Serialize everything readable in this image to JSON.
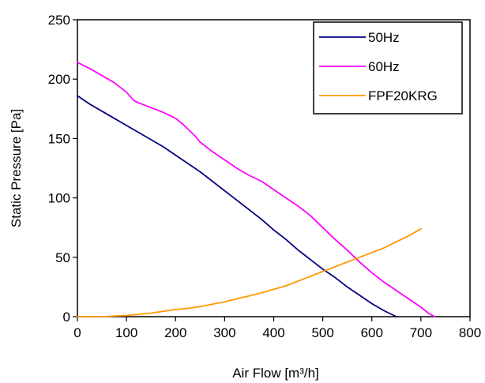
{
  "chart_data": {
    "type": "line",
    "title": "",
    "xlabel": "Air Flow  [m³/h]",
    "ylabel": "Static Pressure [Pa]",
    "xlim": [
      0,
      800
    ],
    "ylim": [
      0,
      250
    ],
    "x_ticks": [
      0,
      100,
      200,
      300,
      400,
      500,
      600,
      700,
      800
    ],
    "y_ticks": [
      0,
      50,
      100,
      150,
      200,
      250
    ],
    "grid": false,
    "legend_position": "top-right",
    "series": [
      {
        "name": "50Hz",
        "color": "#000080",
        "points": [
          [
            0,
            186
          ],
          [
            25,
            179
          ],
          [
            50,
            173
          ],
          [
            75,
            167
          ],
          [
            100,
            161
          ],
          [
            125,
            155
          ],
          [
            150,
            149
          ],
          [
            175,
            143
          ],
          [
            200,
            136
          ],
          [
            225,
            129
          ],
          [
            250,
            122
          ],
          [
            275,
            114
          ],
          [
            300,
            106
          ],
          [
            325,
            98
          ],
          [
            350,
            90
          ],
          [
            375,
            82
          ],
          [
            400,
            73
          ],
          [
            425,
            65
          ],
          [
            450,
            56
          ],
          [
            475,
            48
          ],
          [
            500,
            40
          ],
          [
            525,
            33
          ],
          [
            550,
            25
          ],
          [
            575,
            18
          ],
          [
            600,
            11
          ],
          [
            625,
            5
          ],
          [
            650,
            0
          ]
        ]
      },
      {
        "name": "60Hz",
        "color": "#FF00FF",
        "points": [
          [
            0,
            214
          ],
          [
            25,
            209
          ],
          [
            50,
            203
          ],
          [
            75,
            197
          ],
          [
            100,
            189
          ],
          [
            115,
            182
          ],
          [
            125,
            180
          ],
          [
            150,
            176
          ],
          [
            175,
            172
          ],
          [
            200,
            167
          ],
          [
            215,
            162
          ],
          [
            225,
            158
          ],
          [
            240,
            152
          ],
          [
            250,
            147
          ],
          [
            275,
            139
          ],
          [
            300,
            132
          ],
          [
            325,
            125
          ],
          [
            350,
            119
          ],
          [
            375,
            114
          ],
          [
            400,
            107
          ],
          [
            425,
            100
          ],
          [
            450,
            93
          ],
          [
            475,
            85
          ],
          [
            500,
            75
          ],
          [
            525,
            65
          ],
          [
            550,
            56
          ],
          [
            575,
            46
          ],
          [
            600,
            37
          ],
          [
            625,
            29
          ],
          [
            650,
            22
          ],
          [
            675,
            15
          ],
          [
            700,
            8
          ],
          [
            715,
            3
          ],
          [
            728,
            0
          ]
        ]
      },
      {
        "name": "FPF20KRG",
        "color": "#FF9900",
        "points": [
          [
            0,
            0
          ],
          [
            25,
            0
          ],
          [
            50,
            0
          ],
          [
            75,
            0.5
          ],
          [
            100,
            1
          ],
          [
            125,
            2
          ],
          [
            150,
            3
          ],
          [
            175,
            4.5
          ],
          [
            200,
            6
          ],
          [
            225,
            7
          ],
          [
            250,
            8.5
          ],
          [
            275,
            10.5
          ],
          [
            300,
            12.5
          ],
          [
            325,
            15
          ],
          [
            350,
            17.5
          ],
          [
            375,
            20
          ],
          [
            400,
            23
          ],
          [
            425,
            26
          ],
          [
            450,
            30
          ],
          [
            475,
            34
          ],
          [
            500,
            38
          ],
          [
            525,
            42
          ],
          [
            550,
            46
          ],
          [
            575,
            50
          ],
          [
            600,
            54
          ],
          [
            625,
            58
          ],
          [
            650,
            63
          ],
          [
            675,
            68
          ],
          [
            700,
            74
          ]
        ]
      }
    ]
  }
}
